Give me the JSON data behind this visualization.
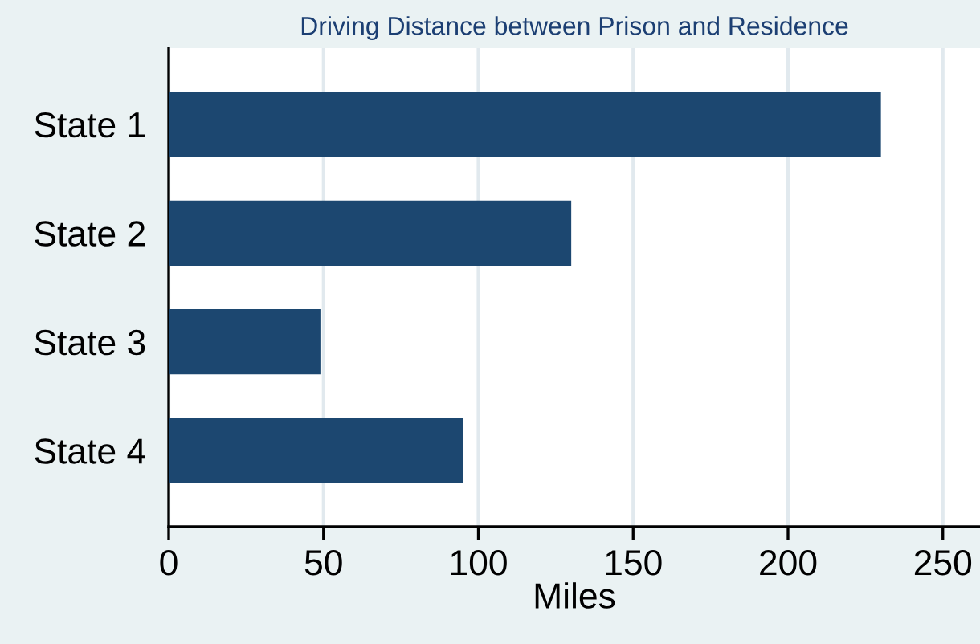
{
  "chart_data": {
    "type": "bar",
    "orientation": "horizontal",
    "title": "Driving Distance between Prison and Residence",
    "xlabel": "Miles",
    "categories": [
      "State 1",
      "State 2",
      "State 3",
      "State 4"
    ],
    "values": [
      230,
      130,
      49,
      95
    ],
    "color": "#1c4770",
    "xlim": [
      0,
      262
    ],
    "xticks": [
      0,
      50,
      100,
      150,
      200,
      250
    ],
    "grid": "x"
  }
}
